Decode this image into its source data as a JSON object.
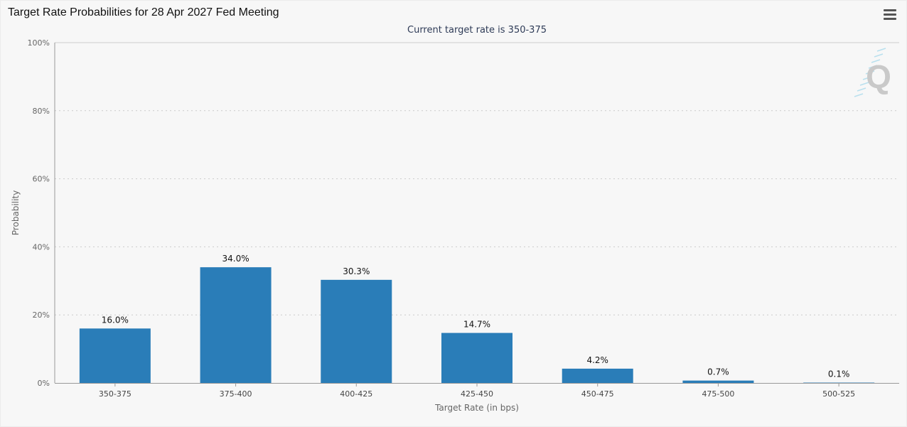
{
  "header": {
    "title": "Target Rate Probabilities for 28 Apr 2027 Fed Meeting",
    "menu_icon": "hamburger-menu-icon"
  },
  "watermark": {
    "letter": "Q"
  },
  "colors": {
    "bar": "#2a7db8",
    "grid": "#cccccc",
    "axis": "#999999"
  },
  "chart_data": {
    "type": "bar",
    "title": "Target Rate Probabilities for 28 Apr 2027 Fed Meeting",
    "subtitle": "Current target rate is 350-375",
    "xlabel": "Target Rate (in bps)",
    "ylabel": "Probability",
    "categories": [
      "350-375",
      "375-400",
      "400-425",
      "425-450",
      "450-475",
      "475-500",
      "500-525"
    ],
    "values": [
      16.0,
      34.0,
      30.3,
      14.7,
      4.2,
      0.7,
      0.1
    ],
    "data_labels": [
      "16.0%",
      "34.0%",
      "30.3%",
      "14.7%",
      "4.2%",
      "0.7%",
      "0.1%"
    ],
    "ylim": [
      0,
      100
    ],
    "y_ticks": [
      0,
      20,
      40,
      60,
      80,
      100
    ],
    "y_tick_labels": [
      "0%",
      "20%",
      "40%",
      "60%",
      "80%",
      "100%"
    ],
    "grid": true,
    "legend": "none"
  }
}
